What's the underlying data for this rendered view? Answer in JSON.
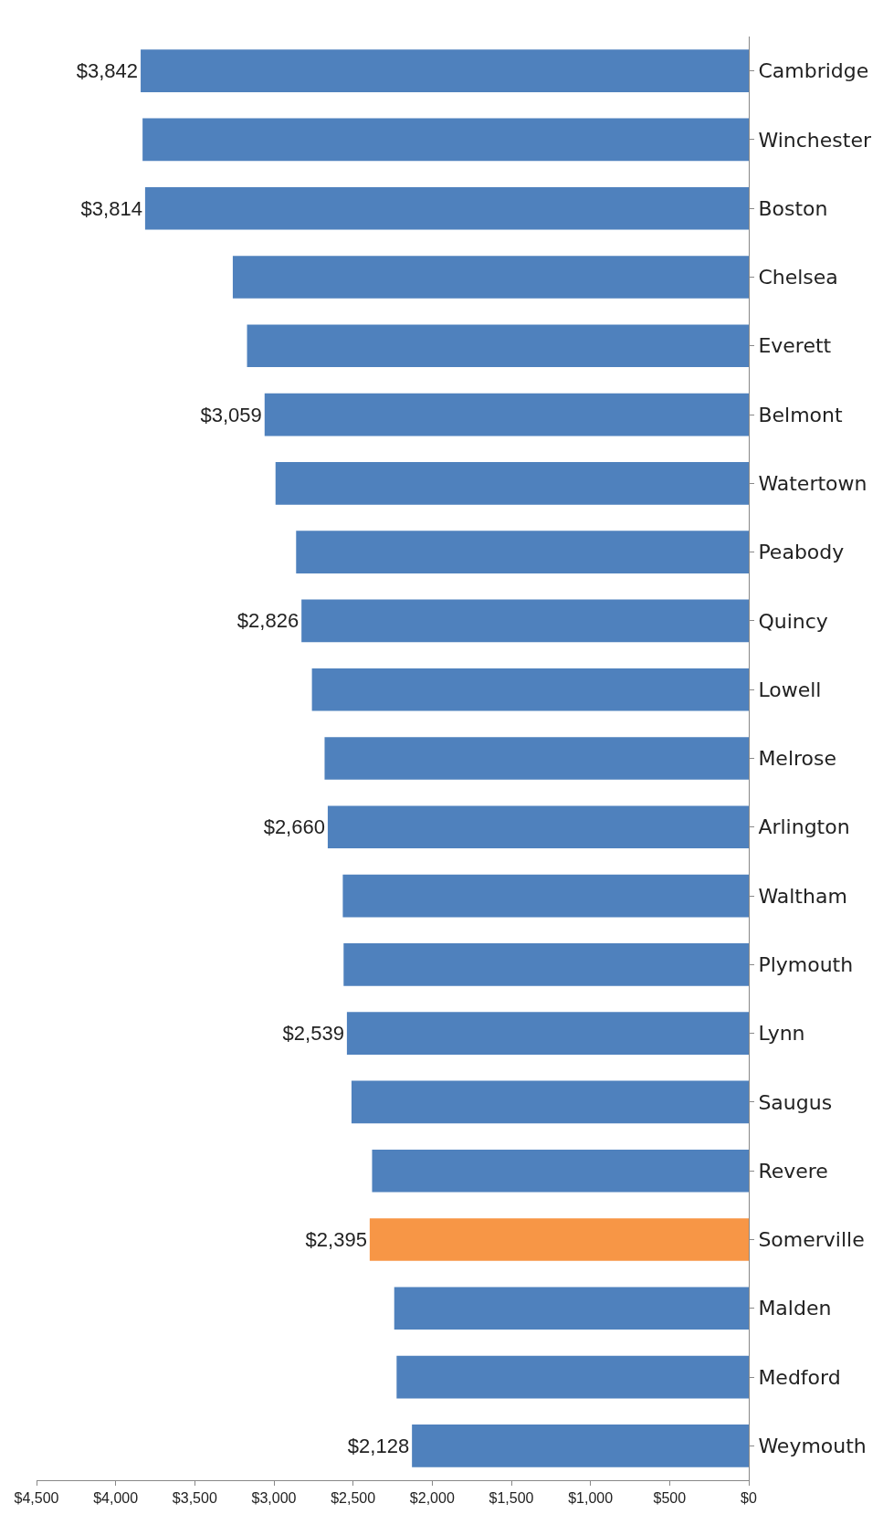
{
  "chart_data": {
    "type": "bar",
    "orientation": "horizontal",
    "categories": [
      "Cambridge",
      "Winchester",
      "Boston",
      "Chelsea",
      "Everett",
      "Belmont",
      "Watertown",
      "Peabody",
      "Quincy",
      "Lowell",
      "Melrose",
      "Arlington",
      "Waltham",
      "Plymouth",
      "Lynn",
      "Saugus",
      "Revere",
      "Somerville",
      "Malden",
      "Medford",
      "Weymouth"
    ],
    "values": [
      3842,
      3830,
      3814,
      3260,
      3170,
      3059,
      2990,
      2860,
      2826,
      2760,
      2680,
      2660,
      2565,
      2560,
      2539,
      2510,
      2380,
      2395,
      2240,
      2225,
      2128
    ],
    "colors": [
      "#4f81bd",
      "#4f81bd",
      "#4f81bd",
      "#4f81bd",
      "#4f81bd",
      "#4f81bd",
      "#4f81bd",
      "#4f81bd",
      "#4f81bd",
      "#4f81bd",
      "#4f81bd",
      "#4f81bd",
      "#4f81bd",
      "#4f81bd",
      "#4f81bd",
      "#4f81bd",
      "#4f81bd",
      "#f79646",
      "#4f81bd",
      "#4f81bd",
      "#4f81bd"
    ],
    "value_labels": [
      "$3,842",
      null,
      "$3,814",
      null,
      null,
      "$3,059",
      null,
      null,
      "$2,826",
      null,
      null,
      "$2,660",
      null,
      null,
      "$2,539",
      null,
      null,
      "$2,395",
      null,
      null,
      "$2,128"
    ],
    "xlim": [
      4500,
      0
    ],
    "xticks": [
      {
        "value": 4500,
        "label": "$4,500"
      },
      {
        "value": 4000,
        "label": "$4,000"
      },
      {
        "value": 3500,
        "label": "$3,500"
      },
      {
        "value": 3000,
        "label": "$3,000"
      },
      {
        "value": 2500,
        "label": "$2,500"
      },
      {
        "value": 2000,
        "label": "$2,000"
      },
      {
        "value": 1500,
        "label": "$1,500"
      },
      {
        "value": 1000,
        "label": "$1,000"
      },
      {
        "value": 500,
        "label": "$500"
      },
      {
        "value": 0,
        "label": "$0"
      }
    ],
    "grid": false,
    "legend": false
  }
}
